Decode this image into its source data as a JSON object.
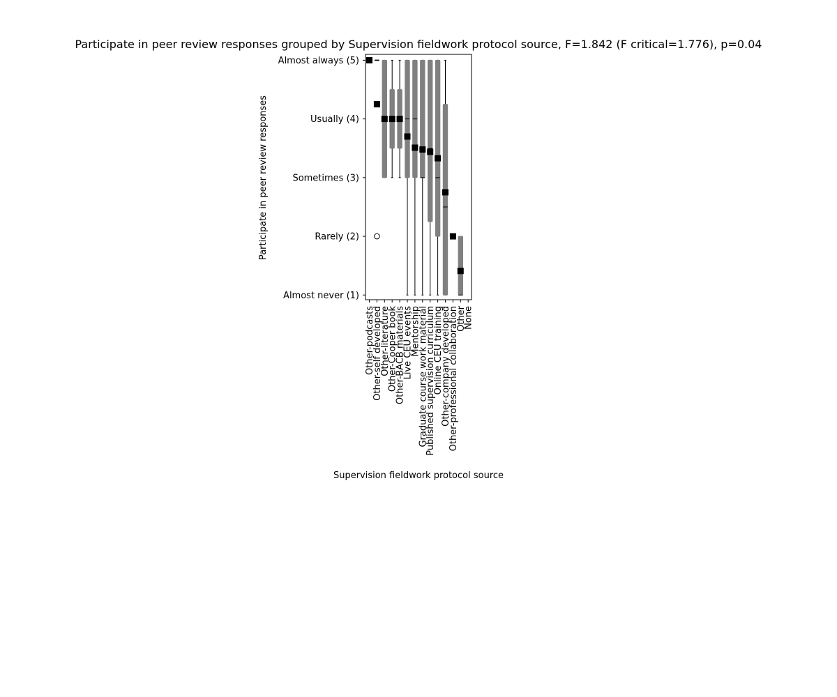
{
  "chart_data": {
    "type": "box",
    "title": "Participate in peer review responses grouped by Supervision fieldwork protocol source, F=1.842 (F critical=1.776), p=0.04",
    "xlabel": "Supervision fieldwork protocol source",
    "ylabel": "Participate in peer review responses",
    "ylim": [
      0.92,
      5.1
    ],
    "yticks": [
      {
        "value": 5,
        "label": "Almost always (5)"
      },
      {
        "value": 4,
        "label": "Usually (4)"
      },
      {
        "value": 3,
        "label": "Sometimes (3)"
      },
      {
        "value": 2,
        "label": "Rarely (2)"
      },
      {
        "value": 1,
        "label": "Almost never (1)"
      }
    ],
    "categories": [
      "Other-podcasts",
      "Other-self developed",
      "Other-literature",
      "Other-Cooper book",
      "Other-BACB materials",
      "Live CEU events",
      "Mentorship",
      "Graduate course work material",
      "Published supervision curriculum",
      "Online CEU training",
      "Other-company developed",
      "Other-professional collaboration",
      "Other",
      "None"
    ],
    "boxes": [
      {
        "q1": 5,
        "median": 5,
        "q3": 5,
        "whisker_low": 5,
        "whisker_high": 5,
        "mean": 5,
        "outliers": []
      },
      {
        "q1": 5,
        "median": 5,
        "q3": 5,
        "whisker_low": 5,
        "whisker_high": 5,
        "mean": 4.25,
        "outliers": [
          2
        ]
      },
      {
        "q1": 3,
        "median": 4,
        "q3": 5,
        "whisker_low": 3,
        "whisker_high": 5,
        "mean": 4,
        "outliers": []
      },
      {
        "q1": 3.5,
        "median": 4,
        "q3": 4.5,
        "whisker_low": 3,
        "whisker_high": 5,
        "mean": 4,
        "outliers": []
      },
      {
        "q1": 3.5,
        "median": 4,
        "q3": 4.5,
        "whisker_low": 3,
        "whisker_high": 5,
        "mean": 4,
        "outliers": []
      },
      {
        "q1": 3,
        "median": 4,
        "q3": 5,
        "whisker_low": 1,
        "whisker_high": 5,
        "mean": 3.7,
        "outliers": []
      },
      {
        "q1": 3,
        "median": 4,
        "q3": 5,
        "whisker_low": 1,
        "whisker_high": 5,
        "mean": 3.51,
        "outliers": []
      },
      {
        "q1": 3,
        "median": 3,
        "q3": 5,
        "whisker_low": 1,
        "whisker_high": 5,
        "mean": 3.48,
        "outliers": []
      },
      {
        "q1": 2.25,
        "median": 3.5,
        "q3": 5,
        "whisker_low": 1,
        "whisker_high": 5,
        "mean": 3.44,
        "outliers": []
      },
      {
        "q1": 2,
        "median": 3,
        "q3": 5,
        "whisker_low": 1,
        "whisker_high": 5,
        "mean": 3.33,
        "outliers": []
      },
      {
        "q1": 1,
        "median": 2.5,
        "q3": 4.25,
        "whisker_low": 1,
        "whisker_high": 5,
        "mean": 2.75,
        "outliers": []
      },
      {
        "q1": 2,
        "median": 2,
        "q3": 2,
        "whisker_low": 2,
        "whisker_high": 2,
        "mean": 2,
        "outliers": []
      },
      {
        "q1": 1,
        "median": 1,
        "q3": 2,
        "whisker_low": 1,
        "whisker_high": 2,
        "mean": 1.41,
        "outliers": []
      },
      null
    ],
    "colors": {
      "box": "#808080",
      "whisker": "#000000",
      "mean": "#000000",
      "median": "#000000"
    },
    "grid": false,
    "legend": "none"
  }
}
